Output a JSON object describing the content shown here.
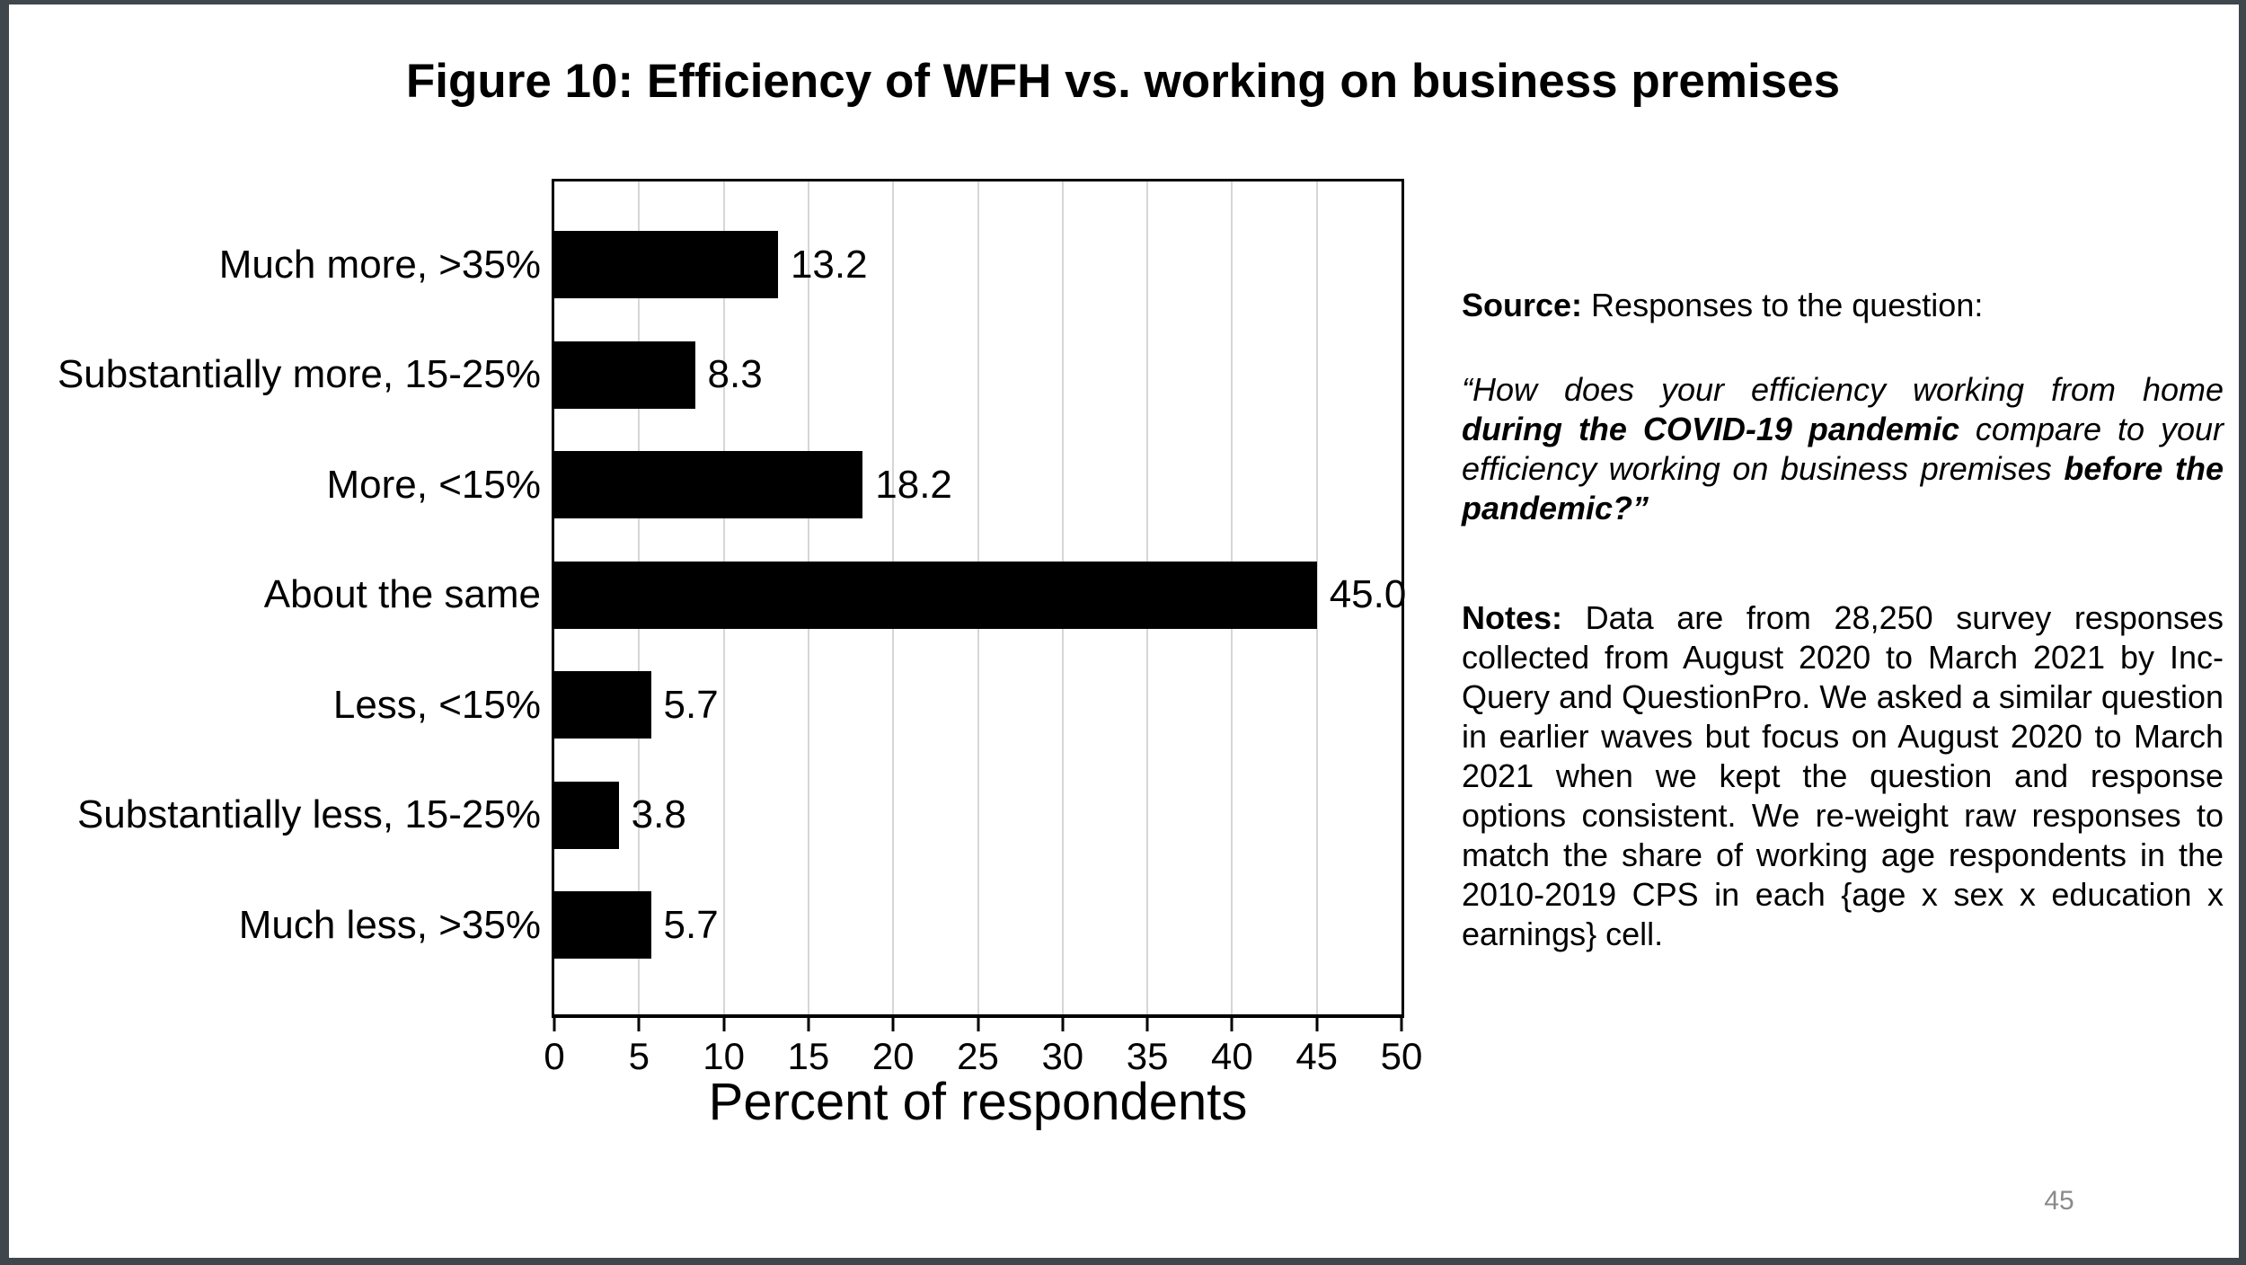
{
  "title": "Figure 10: Efficiency of WFH vs. working on business premises",
  "chart_data": {
    "type": "bar",
    "orientation": "horizontal",
    "title": "",
    "xlabel": "Percent of respondents",
    "ylabel": "",
    "xlim": [
      0,
      50
    ],
    "xticks": [
      0,
      5,
      10,
      15,
      20,
      25,
      30,
      35,
      40,
      45,
      50
    ],
    "grid": true,
    "gridline_color": "#d6d6d6",
    "bar_color": "#000000",
    "categories": [
      "Much more, >35%",
      "Substantially more, 15-25%",
      "More, <15%",
      "About the same",
      "Less, <15%",
      "Substantially less, 15-25%",
      "Much less, >35%"
    ],
    "values": [
      13.2,
      8.3,
      18.2,
      45.0,
      5.7,
      3.8,
      5.7
    ],
    "value_labels": [
      "13.2",
      "8.3",
      "18.2",
      "45.0",
      "5.7",
      "3.8",
      "5.7"
    ]
  },
  "source": {
    "label": "Source:",
    "text": " Responses to the question:"
  },
  "quote": {
    "part1": "“How does your efficiency working from home ",
    "part2_bold": "during the COVID-19 pandemic",
    "part3": " compare to your efficiency working on business premises ",
    "part4_bold": "before the pandemic?”"
  },
  "notes": {
    "label": "Notes:",
    "text": " Data are from 28,250 survey responses collected from August 2020 to March 2021 by Inc-Query and QuestionPro. We asked a similar question in earlier waves but focus on August 2020 to March 2021 when we kept the question and response options consistent. We re-weight raw responses to match the share of working age respondents in the 2010-2019 CPS in each {age x sex x education x earnings} cell."
  },
  "page": {
    "number": "45"
  },
  "colors": {
    "frame": "#3f464c",
    "background": "#ffffff",
    "bar": "#000000",
    "gridline": "#d6d6d6",
    "page_number": "#8a8a8a"
  }
}
